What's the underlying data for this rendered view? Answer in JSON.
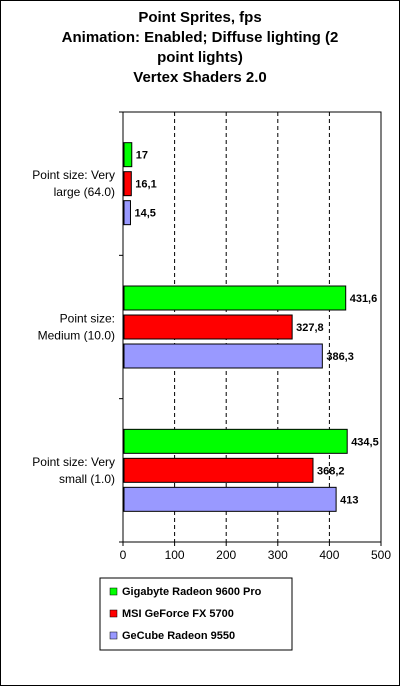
{
  "chart_data": {
    "type": "bar",
    "orientation": "horizontal",
    "title": [
      "Point Sprites, fps",
      "Animation: Enabled; Diffuse lighting (2",
      "point lights)",
      "Vertex Shaders 2.0"
    ],
    "categories": [
      [
        "Point size: Very",
        "large (64.0)"
      ],
      [
        "Point size:",
        "Medium (10.0)"
      ],
      [
        "Point size: Very",
        "small (1.0)"
      ]
    ],
    "series": [
      {
        "name": "Gigabyte Radeon 9600 Pro",
        "color": "#00ff00",
        "values": [
          17,
          431.6,
          434.5
        ],
        "labels": [
          "17",
          "431,6",
          "434,5"
        ]
      },
      {
        "name": "MSI GeForce FX 5700",
        "color": "#ff0000",
        "values": [
          16.1,
          327.8,
          368.2
        ],
        "labels": [
          "16,1",
          "327,8",
          "368,2"
        ]
      },
      {
        "name": "GeCube Radeon 9550",
        "color": "#9999ff",
        "values": [
          14.5,
          386.3,
          413
        ],
        "labels": [
          "14,5",
          "386,3",
          "413"
        ]
      }
    ],
    "xlim": [
      0,
      500
    ],
    "xticks": [
      0,
      100,
      200,
      300,
      400,
      500
    ],
    "xtick_labels": [
      "0",
      "100",
      "200",
      "300",
      "400",
      "500"
    ],
    "grid": "vertical dashed",
    "legend": "bottom"
  }
}
